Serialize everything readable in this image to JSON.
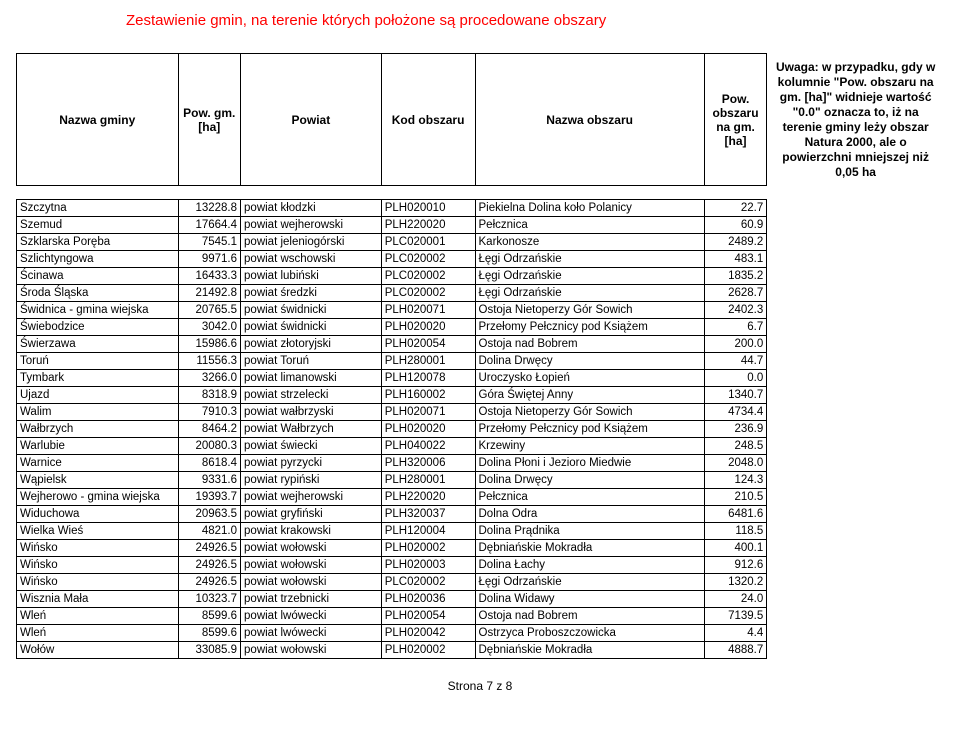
{
  "title": "Zestawienie gmin, na terenie których położone są procedowane obszary",
  "headers": {
    "nazwa_gminy": "Nazwa gminy",
    "pow_gm": "Pow. gm. [ha]",
    "powiat": "Powiat",
    "kod": "Kod obszaru",
    "nazwa_obszaru": "Nazwa obszaru",
    "pow_obs": "Pow. obszaru na gm. [ha]"
  },
  "note": "Uwaga: w przypadku, gdy w kolumnie \"Pow. obszaru na gm. [ha]\" widnieje wartość \"0.0\" oznacza to, iż na terenie gminy leży obszar Natura 2000, ale o powierzchni mniejszej niż 0,05 ha",
  "rows": [
    [
      "Szczytna",
      "13228.8",
      "powiat kłodzki",
      "PLH020010",
      "Piekielna Dolina koło Polanicy",
      "22.7"
    ],
    [
      "Szemud",
      "17664.4",
      "powiat wejherowski",
      "PLH220020",
      "Pełcznica",
      "60.9"
    ],
    [
      "Szklarska Poręba",
      "7545.1",
      "powiat jeleniogórski",
      "PLC020001",
      "Karkonosze",
      "2489.2"
    ],
    [
      "Szlichtyngowa",
      "9971.6",
      "powiat wschowski",
      "PLC020002",
      "Łęgi Odrzańskie",
      "483.1"
    ],
    [
      "Ścinawa",
      "16433.3",
      "powiat lubiński",
      "PLC020002",
      "Łęgi Odrzańskie",
      "1835.2"
    ],
    [
      "Środa Śląska",
      "21492.8",
      "powiat średzki",
      "PLC020002",
      "Łęgi Odrzańskie",
      "2628.7"
    ],
    [
      "Świdnica - gmina wiejska",
      "20765.5",
      "powiat świdnicki",
      "PLH020071",
      "Ostoja Nietoperzy Gór Sowich",
      "2402.3"
    ],
    [
      "Świebodzice",
      "3042.0",
      "powiat świdnicki",
      "PLH020020",
      "Przełomy Pełcznicy pod Książem",
      "6.7"
    ],
    [
      "Świerzawa",
      "15986.6",
      "powiat złotoryjski",
      "PLH020054",
      "Ostoja nad Bobrem",
      "200.0"
    ],
    [
      "Toruń",
      "11556.3",
      "powiat Toruń",
      "PLH280001",
      "Dolina Drwęcy",
      "44.7"
    ],
    [
      "Tymbark",
      "3266.0",
      "powiat limanowski",
      "PLH120078",
      "Uroczysko Łopień",
      "0.0"
    ],
    [
      "Ujazd",
      "8318.9",
      "powiat strzelecki",
      "PLH160002",
      "Góra Świętej Anny",
      "1340.7"
    ],
    [
      "Walim",
      "7910.3",
      "powiat wałbrzyski",
      "PLH020071",
      "Ostoja Nietoperzy Gór Sowich",
      "4734.4"
    ],
    [
      "Wałbrzych",
      "8464.2",
      "powiat Wałbrzych",
      "PLH020020",
      "Przełomy Pełcznicy pod Książem",
      "236.9"
    ],
    [
      "Warlubie",
      "20080.3",
      "powiat świecki",
      "PLH040022",
      "Krzewiny",
      "248.5"
    ],
    [
      "Warnice",
      "8618.4",
      "powiat pyrzycki",
      "PLH320006",
      "Dolina Płoni i Jezioro Miedwie",
      "2048.0"
    ],
    [
      "Wąpielsk",
      "9331.6",
      "powiat rypiński",
      "PLH280001",
      "Dolina Drwęcy",
      "124.3"
    ],
    [
      "Wejherowo - gmina wiejska",
      "19393.7",
      "powiat wejherowski",
      "PLH220020",
      "Pełcznica",
      "210.5"
    ],
    [
      "Widuchowa",
      "20963.5",
      "powiat gryfiński",
      "PLH320037",
      "Dolna Odra",
      "6481.6"
    ],
    [
      "Wielka Wieś",
      "4821.0",
      "powiat krakowski",
      "PLH120004",
      "Dolina Prądnika",
      "118.5"
    ],
    [
      "Wińsko",
      "24926.5",
      "powiat wołowski",
      "PLH020002",
      "Dębniańskie Mokradła",
      "400.1"
    ],
    [
      "Wińsko",
      "24926.5",
      "powiat wołowski",
      "PLH020003",
      "Dolina Łachy",
      "912.6"
    ],
    [
      "Wińsko",
      "24926.5",
      "powiat wołowski",
      "PLC020002",
      "Łęgi Odrzańskie",
      "1320.2"
    ],
    [
      "Wisznia Mała",
      "10323.7",
      "powiat trzebnicki",
      "PLH020036",
      "Dolina Widawy",
      "24.0"
    ],
    [
      "Wleń",
      "8599.6",
      "powiat lwówecki",
      "PLH020054",
      "Ostoja nad Bobrem",
      "7139.5"
    ],
    [
      "Wleń",
      "8599.6",
      "powiat lwówecki",
      "PLH020042",
      "Ostrzyca Proboszczowicka",
      "4.4"
    ],
    [
      "Wołów",
      "33085.9",
      "powiat wołowski",
      "PLH020002",
      "Dębniańskie Mokradła",
      "4888.7"
    ]
  ],
  "footer": "Strona 7 z 8"
}
